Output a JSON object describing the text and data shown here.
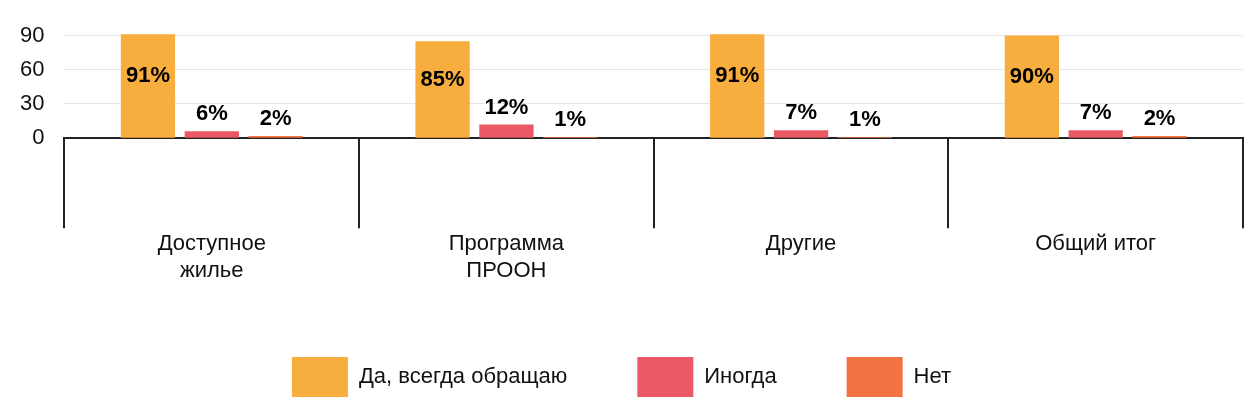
{
  "chart_data": {
    "type": "bar",
    "categories": [
      "Доступное жилье",
      "Программа ПРООН",
      "Другие",
      "Общий итог"
    ],
    "series": [
      {
        "name": "Да, всегда обращаю",
        "color": "#f8ad3f",
        "values": [
          91,
          85,
          91,
          90
        ],
        "value_labels": [
          "91%",
          "85%",
          "91%",
          "90%"
        ]
      },
      {
        "name": "Иногда",
        "color": "#e95a64",
        "values": [
          6,
          12,
          7,
          7
        ],
        "value_labels": [
          "6%",
          "12%",
          "7%",
          "7%"
        ]
      },
      {
        "name": "Нет",
        "color": "#f47342",
        "values": [
          2,
          1,
          1,
          2
        ],
        "value_labels": [
          "2%",
          "1%",
          "1%",
          "2%"
        ]
      }
    ],
    "ylim": [
      0,
      92
    ],
    "yticks": [
      0,
      30,
      60,
      90
    ],
    "grid": "y",
    "legend": "bottom"
  }
}
